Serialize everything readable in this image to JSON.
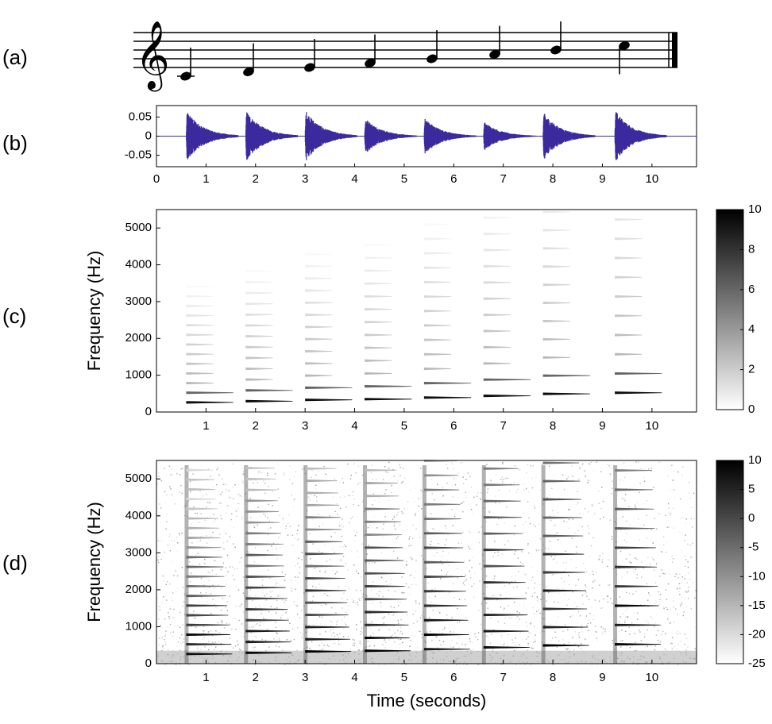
{
  "panels": {
    "a": {
      "label": "(a)"
    },
    "b": {
      "label": "(b)"
    },
    "c": {
      "label": "(c)"
    },
    "d": {
      "label": "(d)"
    }
  },
  "colors": {
    "waveform": "#3b2a9e",
    "axis": "#000000"
  },
  "chart_data": [
    {
      "panel": "a",
      "type": "other",
      "description_kind": "music-staff",
      "clef": "treble",
      "notes": [
        "C4",
        "D4",
        "E4",
        "F4",
        "G4",
        "A4",
        "B4",
        "C5"
      ]
    },
    {
      "panel": "b",
      "type": "line",
      "xlabel": "",
      "ylabel": "",
      "xlim": [
        0,
        10.9
      ],
      "ylim": [
        -0.08,
        0.08
      ],
      "x_ticks": [
        "0",
        "1",
        "2",
        "3",
        "4",
        "5",
        "6",
        "7",
        "8",
        "9",
        "10"
      ],
      "y_ticks": [
        "0.05",
        "0",
        "-0.05"
      ],
      "note_onsets": [
        0.6,
        1.8,
        3.0,
        4.2,
        5.4,
        6.6,
        7.8,
        9.25
      ],
      "note_peaks": [
        0.07,
        0.07,
        0.07,
        0.05,
        0.05,
        0.04,
        0.065,
        0.07
      ]
    },
    {
      "panel": "c",
      "type": "heatmap",
      "ylabel": "Frequency (Hz)",
      "xlim": [
        0,
        10.9
      ],
      "ylim": [
        0,
        5500
      ],
      "x_ticks": [
        "1",
        "2",
        "3",
        "4",
        "5",
        "6",
        "7",
        "8",
        "9",
        "10"
      ],
      "y_ticks": [
        "0",
        "1000",
        "2000",
        "3000",
        "4000",
        "5000"
      ],
      "colorbar": {
        "range": [
          0,
          10
        ],
        "ticks": [
          "10",
          "8",
          "6",
          "4",
          "2",
          "0"
        ]
      },
      "note_onsets": [
        0.6,
        1.8,
        3.0,
        4.2,
        5.4,
        6.6,
        7.8,
        9.25
      ],
      "fundamentals_hz": [
        262,
        294,
        330,
        349,
        392,
        440,
        494,
        523
      ]
    },
    {
      "panel": "d",
      "type": "heatmap",
      "ylabel": "Frequency (Hz)",
      "xlabel": "Time (seconds)",
      "xlim": [
        0,
        10.9
      ],
      "ylim": [
        0,
        5500
      ],
      "x_ticks": [
        "1",
        "2",
        "3",
        "4",
        "5",
        "6",
        "7",
        "8",
        "9",
        "10"
      ],
      "y_ticks": [
        "0",
        "1000",
        "2000",
        "3000",
        "4000",
        "5000"
      ],
      "colorbar": {
        "range": [
          -25,
          10
        ],
        "ticks": [
          "10",
          "5",
          "0",
          "-5",
          "-10",
          "-15",
          "-20",
          "-25"
        ]
      },
      "note_onsets": [
        0.6,
        1.8,
        3.0,
        4.2,
        5.4,
        6.6,
        7.8,
        9.25
      ],
      "fundamentals_hz": [
        262,
        294,
        330,
        349,
        392,
        440,
        494,
        523
      ]
    }
  ]
}
